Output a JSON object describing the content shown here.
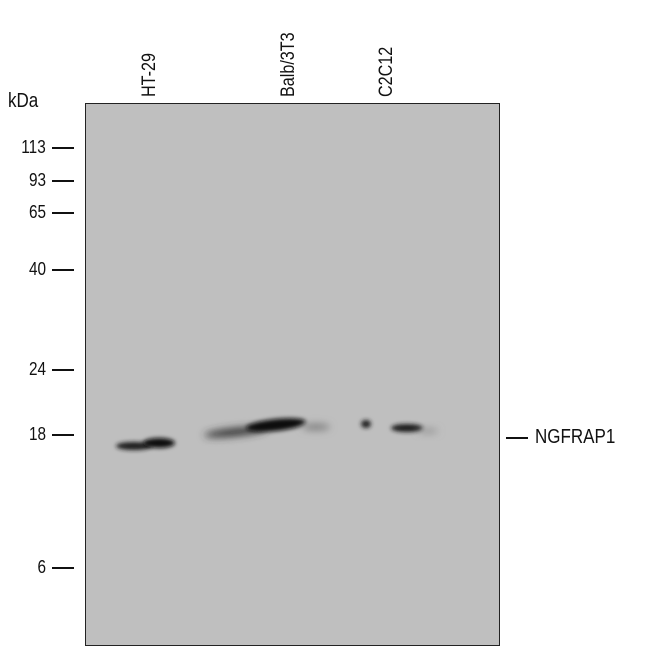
{
  "unit_label": "kDa",
  "markers": [
    "113",
    "93",
    "65",
    "40",
    "24",
    "18",
    "6"
  ],
  "lanes": [
    "HT-29",
    "Balb/3T3",
    "C2C12"
  ],
  "target_label": "NGFRAP1",
  "colors": {
    "membrane": "#bfbfbf",
    "band": "#111111"
  }
}
